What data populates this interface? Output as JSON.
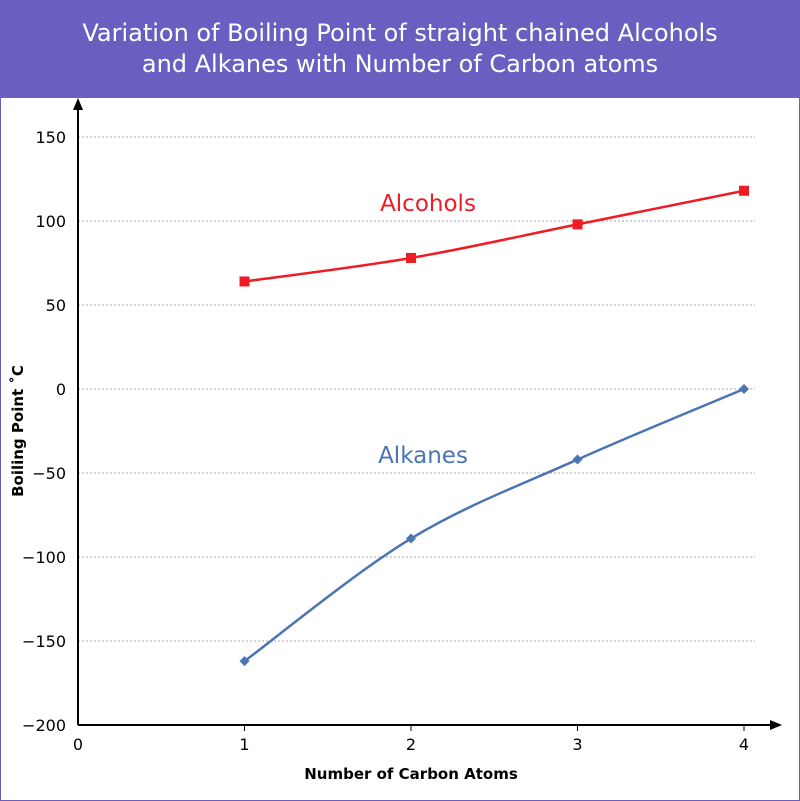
{
  "chart_data": {
    "type": "line",
    "title_lines": [
      "Variation of Boiling Point of straight chained Alcohols",
      "and Alkanes with Number of Carbon atoms"
    ],
    "xlabel": "Number of Carbon Atoms",
    "ylabel": "Boiling Point ˚C",
    "xlim": [
      0,
      4
    ],
    "ylim": [
      -200,
      150
    ],
    "x_ticks": [
      "0",
      "1",
      "2",
      "3",
      "4"
    ],
    "y_ticks": [
      "150",
      "100",
      "50",
      "0",
      "−50",
      "−100",
      "−150",
      "−200"
    ],
    "y_tick_values": [
      150,
      100,
      50,
      0,
      -50,
      -100,
      -150,
      -200
    ],
    "grid": "horizontal dotted",
    "x": [
      1,
      2,
      3,
      4
    ],
    "series": [
      {
        "name": "Alcohols",
        "values": [
          64,
          78,
          98,
          118
        ],
        "color": "#ee1c25",
        "marker": "square"
      },
      {
        "name": "Alkanes",
        "values": [
          -162,
          -89,
          -42,
          0
        ],
        "color": "#4a74b4",
        "marker": "diamond"
      }
    ]
  },
  "colors": {
    "header": "#6a5fc1"
  }
}
